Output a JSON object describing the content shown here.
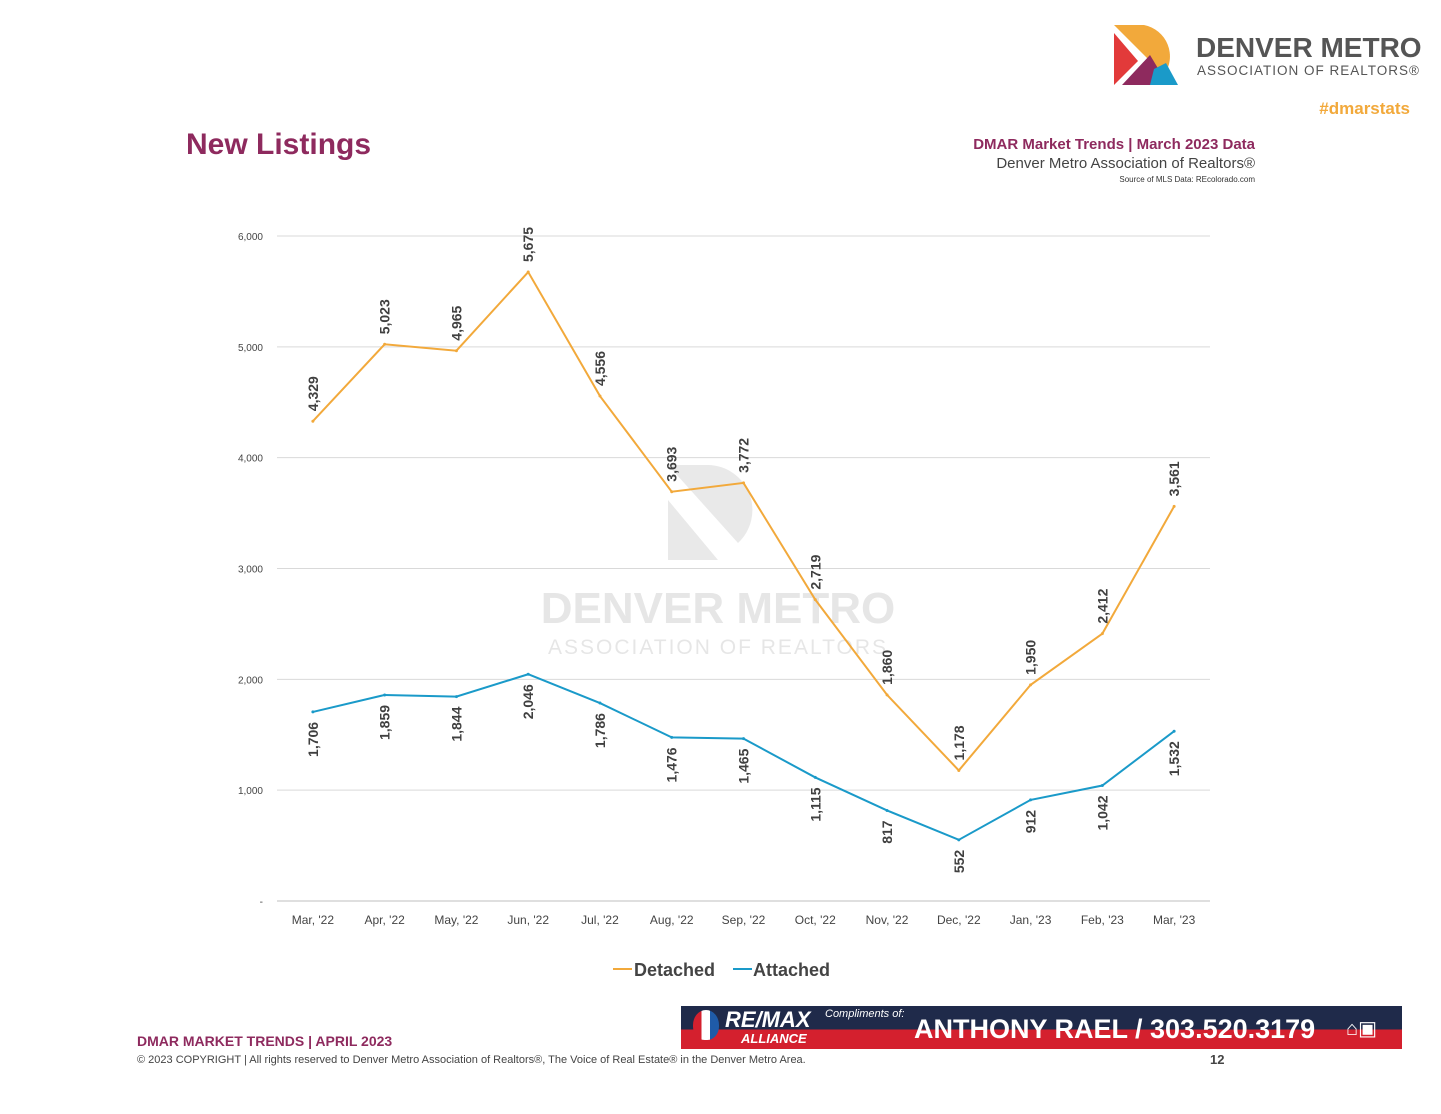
{
  "header": {
    "title": "New Listings",
    "trend": "DMAR Market Trends | March 2023 Data",
    "org": "Denver Metro Association of Realtors®",
    "source": "Source of MLS Data: REcolorado.com",
    "brand_line1": "DENVER METRO",
    "brand_line2": "ASSOCIATION OF REALTORS®",
    "hashtag": "#dmarstats"
  },
  "watermark": {
    "line1": "DENVER METRO",
    "line2": "ASSOCIATION OF REALTORS"
  },
  "footer": {
    "report": "DMAR MARKET TRENDS | APRIL 2023",
    "copyright": "© 2023 COPYRIGHT | All rights reserved to Denver Metro Association of Realtors®, The Voice of Real Estate® in the Denver Metro Area.",
    "page": "12"
  },
  "banner": {
    "brand": "RE/MAX",
    "brand_sub": "ALLIANCE",
    "compliments": "Compliments of:",
    "agent": "ANTHONY RAEL / 303.520.3179",
    "icons": [
      "equal-housing-icon",
      "realtor-icon"
    ]
  },
  "chart_data": {
    "type": "line",
    "categories": [
      "Mar, '22",
      "Apr, '22",
      "May, '22",
      "Jun, '22",
      "Jul, '22",
      "Aug, '22",
      "Sep, '22",
      "Oct, '22",
      "Nov, '22",
      "Dec, '22",
      "Jan, '23",
      "Feb, '23",
      "Mar, '23"
    ],
    "yticks": [
      "-",
      "1,000",
      "2,000",
      "3,000",
      "4,000",
      "5,000",
      "6,000"
    ],
    "ylim": [
      0,
      6000
    ],
    "grid": true,
    "legend": "bottom",
    "series": [
      {
        "name": "Detached",
        "color": "#f2a93b",
        "values": [
          4329,
          5023,
          4965,
          5675,
          4556,
          3693,
          3772,
          2719,
          1860,
          1178,
          1950,
          2412,
          3561
        ]
      },
      {
        "name": "Attached",
        "color": "#1a9ac9",
        "values": [
          1706,
          1859,
          1844,
          2046,
          1786,
          1476,
          1465,
          1115,
          817,
          552,
          912,
          1042,
          1532
        ]
      }
    ]
  }
}
